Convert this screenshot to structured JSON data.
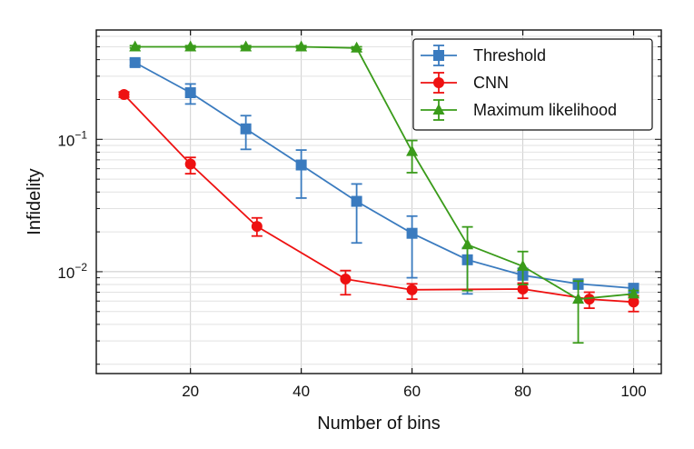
{
  "chart_data": {
    "type": "line",
    "xlabel": "Number of bins",
    "ylabel": "Infidelity",
    "xlim": [
      3,
      105
    ],
    "ylim": [
      0.0017,
      0.67
    ],
    "yscale": "log",
    "grid": true,
    "legend_position": "top-right",
    "x_ticks": [
      {
        "value": 20,
        "label": "20"
      },
      {
        "value": 40,
        "label": "40"
      },
      {
        "value": 60,
        "label": "60"
      },
      {
        "value": 80,
        "label": "80"
      },
      {
        "value": 100,
        "label": "100"
      }
    ],
    "y_ticks": [
      {
        "value": 0.1,
        "base": "10",
        "exp": "−1"
      },
      {
        "value": 0.01,
        "base": "10",
        "exp": "−2"
      }
    ],
    "series": [
      {
        "name": "Threshold",
        "color": "#3a7bbf",
        "marker": "square",
        "points": [
          {
            "x": 10,
            "y": 0.38,
            "lo": 0.36,
            "hi": 0.4
          },
          {
            "x": 20,
            "y": 0.225,
            "lo": 0.185,
            "hi": 0.262
          },
          {
            "x": 30,
            "y": 0.12,
            "lo": 0.084,
            "hi": 0.151
          },
          {
            "x": 40,
            "y": 0.064,
            "lo": 0.036,
            "hi": 0.083
          },
          {
            "x": 50,
            "y": 0.034,
            "lo": 0.0165,
            "hi": 0.046
          },
          {
            "x": 60,
            "y": 0.0195,
            "lo": 0.009,
            "hi": 0.0263
          },
          {
            "x": 70,
            "y": 0.0123,
            "lo": 0.0068,
            "hi": 0.0152
          },
          {
            "x": 80,
            "y": 0.0094,
            "lo": 0.0081,
            "hi": 0.0106
          },
          {
            "x": 90,
            "y": 0.0081,
            "lo": 0.0074,
            "hi": 0.0087
          },
          {
            "x": 100,
            "y": 0.0075,
            "lo": 0.007,
            "hi": 0.0079
          }
        ]
      },
      {
        "name": "CNN",
        "color": "#ee1111",
        "marker": "circle",
        "points": [
          {
            "x": 8,
            "y": 0.218,
            "lo": 0.208,
            "hi": 0.228
          },
          {
            "x": 20,
            "y": 0.065,
            "lo": 0.055,
            "hi": 0.073
          },
          {
            "x": 32,
            "y": 0.022,
            "lo": 0.0186,
            "hi": 0.0255
          },
          {
            "x": 48,
            "y": 0.0088,
            "lo": 0.0067,
            "hi": 0.0102
          },
          {
            "x": 60,
            "y": 0.0073,
            "lo": 0.0062,
            "hi": 0.0081
          },
          {
            "x": 80,
            "y": 0.0074,
            "lo": 0.0063,
            "hi": 0.0082
          },
          {
            "x": 92,
            "y": 0.0062,
            "lo": 0.0053,
            "hi": 0.007
          },
          {
            "x": 100,
            "y": 0.0059,
            "lo": 0.005,
            "hi": 0.0066
          }
        ]
      },
      {
        "name": "Maximum likelihood",
        "color": "#3a9b1a",
        "marker": "triangle",
        "points": [
          {
            "x": 10,
            "y": 0.5,
            "lo": 0.49,
            "hi": 0.51
          },
          {
            "x": 20,
            "y": 0.5,
            "lo": 0.49,
            "hi": 0.51
          },
          {
            "x": 30,
            "y": 0.5,
            "lo": 0.49,
            "hi": 0.51
          },
          {
            "x": 40,
            "y": 0.5,
            "lo": 0.49,
            "hi": 0.51
          },
          {
            "x": 50,
            "y": 0.49,
            "lo": 0.48,
            "hi": 0.5
          },
          {
            "x": 60,
            "y": 0.081,
            "lo": 0.056,
            "hi": 0.098
          },
          {
            "x": 70,
            "y": 0.016,
            "lo": 0.0072,
            "hi": 0.0218
          },
          {
            "x": 80,
            "y": 0.011,
            "lo": 0.008,
            "hi": 0.0142
          },
          {
            "x": 90,
            "y": 0.0062,
            "lo": 0.0029,
            "hi": 0.0085
          },
          {
            "x": 100,
            "y": 0.0068,
            "lo": 0.0064,
            "hi": 0.0072
          }
        ]
      }
    ]
  }
}
